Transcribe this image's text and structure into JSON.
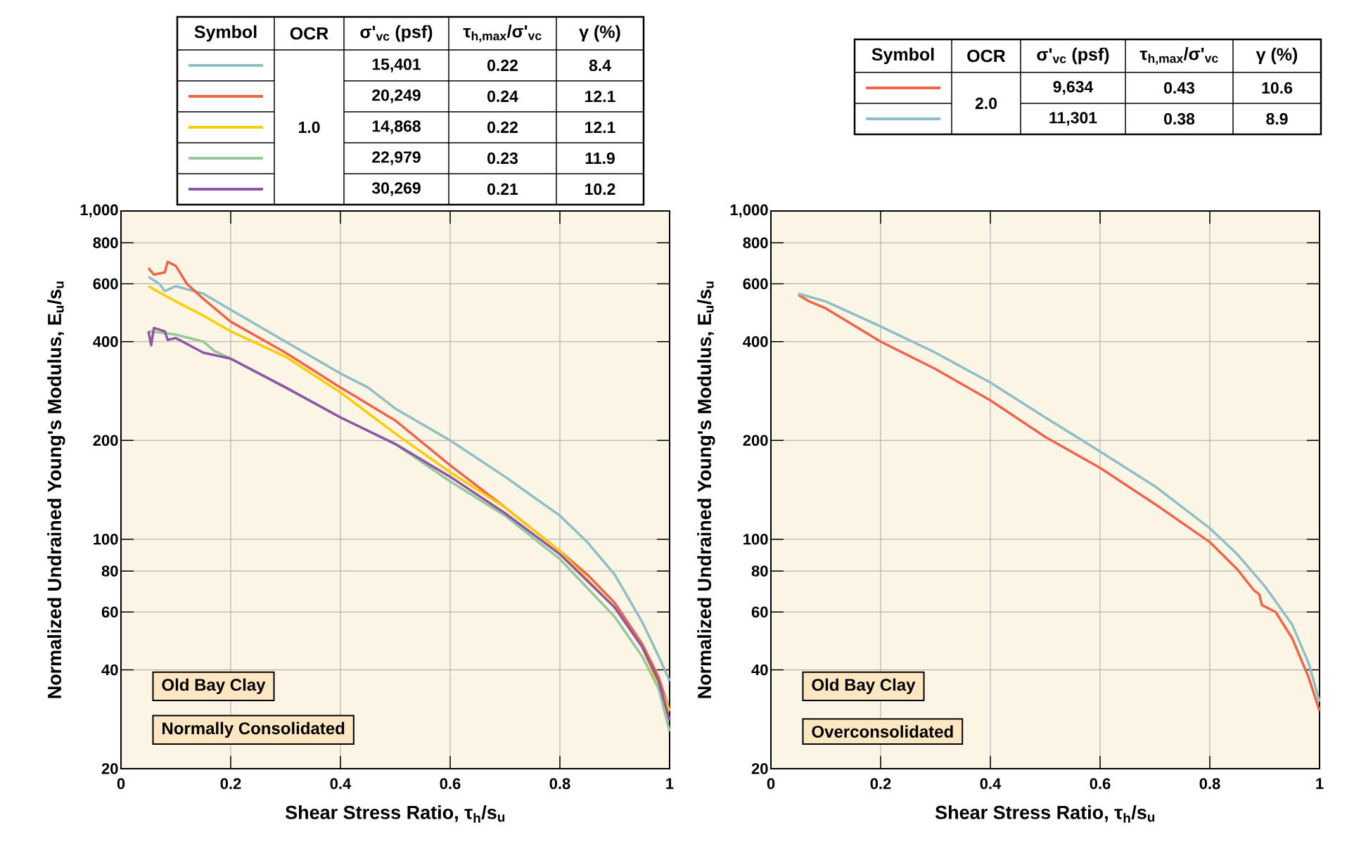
{
  "chart_data": [
    {
      "type": "line",
      "xlabel": "Shear Stress Ratio, τ$_{h}$/s$_{u}$",
      "ylabel": "Normalized Undrained Young's Modulus, E$_{u}$/s$_{u}$",
      "xlim": [
        0,
        1
      ],
      "ylim": [
        20,
        1000
      ],
      "log": "y",
      "grid": true,
      "xticks": [
        0,
        0.2,
        0.4,
        0.6,
        0.8,
        1
      ],
      "yticks": [
        20,
        40,
        60,
        80,
        100,
        200,
        400,
        600,
        800,
        {
          "value": 1000,
          "label": "1,000"
        }
      ],
      "annotations": [
        "Old Bay Clay",
        "Normally Consolidated",
        "Symbol",
        "OCR",
        "σ'$_{vc}$ (psf)",
        "τ$_{h,max}$/σ'$_{vc}$",
        "γ (%)",
        "1.0",
        "15,401",
        "0.22",
        "8.4",
        "20,249",
        "0.24",
        "12.1",
        "14,868",
        "0.22",
        "12.1",
        "22,979",
        "0.23",
        "11.9",
        "30,269",
        "0.21",
        "10.2"
      ],
      "series": [
        {
          "color": "#8fbfc4",
          "x": [
            0.05,
            0.07,
            0.08,
            0.1,
            0.15,
            0.2,
            0.3,
            0.4,
            0.45,
            0.5,
            0.6,
            0.7,
            0.8,
            0.85,
            0.9,
            0.95,
            0.98,
            1.0
          ],
          "values": [
            630,
            600,
            570,
            590,
            560,
            500,
            400,
            320,
            290,
            250,
            200,
            155,
            118,
            98,
            78,
            56,
            44,
            37
          ]
        },
        {
          "color": "#f0654a",
          "x": [
            0.05,
            0.06,
            0.08,
            0.085,
            0.1,
            0.12,
            0.15,
            0.2,
            0.3,
            0.4,
            0.5,
            0.6,
            0.7,
            0.8,
            0.85,
            0.9,
            0.95,
            0.98,
            1.0
          ],
          "values": [
            670,
            640,
            650,
            700,
            680,
            600,
            540,
            460,
            370,
            290,
            230,
            168,
            125,
            92,
            78,
            64,
            48,
            38,
            30
          ]
        },
        {
          "color": "#ffcc00",
          "x": [
            0.05,
            0.1,
            0.15,
            0.2,
            0.3,
            0.4,
            0.5,
            0.6,
            0.7,
            0.8,
            0.9,
            0.95,
            1.0
          ],
          "values": [
            590,
            530,
            480,
            430,
            360,
            280,
            210,
            160,
            125,
            92,
            62,
            47,
            30
          ]
        },
        {
          "color": "#95c99a",
          "x": [
            0.05,
            0.1,
            0.15,
            0.17,
            0.2,
            0.3,
            0.4,
            0.5,
            0.6,
            0.7,
            0.8,
            0.9,
            0.95,
            0.98,
            1.0
          ],
          "values": [
            430,
            420,
            400,
            375,
            355,
            290,
            235,
            195,
            150,
            118,
            87,
            58,
            44,
            35,
            26
          ]
        },
        {
          "color": "#8e55a8",
          "x": [
            0.05,
            0.055,
            0.06,
            0.08,
            0.085,
            0.1,
            0.15,
            0.2,
            0.3,
            0.4,
            0.5,
            0.6,
            0.7,
            0.8,
            0.9,
            0.95,
            0.98,
            1.0
          ],
          "values": [
            430,
            390,
            440,
            430,
            405,
            410,
            370,
            355,
            290,
            235,
            195,
            155,
            120,
            90,
            62,
            47,
            37,
            28
          ]
        }
      ]
    },
    {
      "type": "line",
      "xlabel": "Shear Stress Ratio, τ$_{h}$/s$_{u}$",
      "ylabel": "Normalized Undrained Young's Modulus, E$_{u}$/s$_{u}$",
      "xlim": [
        0,
        1
      ],
      "ylim": [
        20,
        1000
      ],
      "log": "y",
      "grid": true,
      "xticks": [
        0,
        0.2,
        0.4,
        0.6,
        0.8,
        1
      ],
      "yticks": [
        20,
        40,
        60,
        80,
        100,
        200,
        400,
        600,
        800,
        {
          "value": 1000,
          "label": "1,000"
        }
      ],
      "annotations": [
        "Old Bay Clay",
        "Overconsolidated",
        "Symbol",
        "OCR",
        "σ'$_{vc}$ (psf)",
        "τ$_{h,max}$/σ'$_{vc}$",
        "γ (%)",
        "2.0",
        "9,634",
        "0.43",
        "10.6",
        "11,301",
        "0.38",
        "8.9"
      ],
      "series": [
        {
          "color": "#f0654a",
          "x": [
            0.05,
            0.07,
            0.1,
            0.2,
            0.3,
            0.4,
            0.5,
            0.6,
            0.7,
            0.8,
            0.85,
            0.88,
            0.89,
            0.895,
            0.92,
            0.95,
            0.98,
            1.0
          ],
          "values": [
            555,
            530,
            505,
            400,
            330,
            265,
            205,
            165,
            128,
            98,
            81,
            70,
            68,
            63,
            60,
            50,
            38,
            30
          ]
        },
        {
          "color": "#8fbfc4",
          "x": [
            0.05,
            0.1,
            0.2,
            0.3,
            0.4,
            0.5,
            0.6,
            0.7,
            0.8,
            0.85,
            0.9,
            0.95,
            0.98,
            1.0
          ],
          "values": [
            560,
            530,
            445,
            370,
            300,
            235,
            185,
            145,
            108,
            90,
            72,
            55,
            42,
            32
          ]
        }
      ]
    }
  ]
}
